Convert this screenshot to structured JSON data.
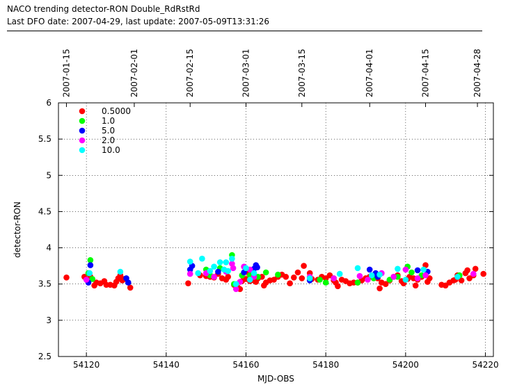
{
  "header": {
    "title": "NACO trending detector-RON Double_RdRstRd",
    "subtitle": "Last DFO date: 2007-04-29, last update: 2007-05-09T13:31:26"
  },
  "chart_data": {
    "type": "scatter",
    "xlabel": "MJD-OBS",
    "ylabel": "detector-RON",
    "xlim": [
      54113,
      54222
    ],
    "ylim": [
      2.5,
      6
    ],
    "x_ticks": [
      54120,
      54140,
      54160,
      54180,
      54200,
      54220
    ],
    "y_ticks": [
      2.5,
      3,
      3.5,
      4,
      4.5,
      5,
      5.5,
      6
    ],
    "y_tick_labels": [
      "2.5",
      "3",
      "3.5",
      "4",
      "4.5",
      "5",
      "5.5",
      "6"
    ],
    "top_axis": {
      "ticks": [
        {
          "x": 54115,
          "label": "2007-01-15"
        },
        {
          "x": 54132,
          "label": "2007-02-01"
        },
        {
          "x": 54146,
          "label": "2007-02-15"
        },
        {
          "x": 54160,
          "label": "2007-03-01"
        },
        {
          "x": 54174,
          "label": "2007-03-15"
        },
        {
          "x": 54191,
          "label": "2007-04-01"
        },
        {
          "x": 54205,
          "label": "2007-04-15"
        },
        {
          "x": 54218,
          "label": "2007-04-28"
        }
      ]
    },
    "grid": true,
    "legend_position": "top-left",
    "series": [
      {
        "name": "0.5000",
        "color": "#ff0000",
        "points": [
          [
            54115,
            3.59
          ],
          [
            54119.5,
            3.6
          ],
          [
            54121,
            3.6
          ],
          [
            54122,
            3.48
          ],
          [
            54122.5,
            3.52
          ],
          [
            54123.5,
            3.51
          ],
          [
            54124.5,
            3.54
          ],
          [
            54125,
            3.49
          ],
          [
            54126,
            3.49
          ],
          [
            54127,
            3.48
          ],
          [
            54127.5,
            3.53
          ],
          [
            54128,
            3.58
          ],
          [
            54128.5,
            3.62
          ],
          [
            54129,
            3.55
          ],
          [
            54129.5,
            3.57
          ],
          [
            54131,
            3.45
          ],
          [
            54145.5,
            3.51
          ],
          [
            54148.5,
            3.62
          ],
          [
            54150,
            3.61
          ],
          [
            54151,
            3.6
          ],
          [
            54152,
            3.59
          ],
          [
            54153,
            3.64
          ],
          [
            54154,
            3.58
          ],
          [
            54155,
            3.56
          ],
          [
            54155.5,
            3.6
          ],
          [
            54157,
            3.49
          ],
          [
            54158,
            3.45
          ],
          [
            54158.5,
            3.43
          ],
          [
            54159,
            3.54
          ],
          [
            54160,
            3.57
          ],
          [
            54160.5,
            3.66
          ],
          [
            54161,
            3.54
          ],
          [
            54162,
            3.55
          ],
          [
            54162.5,
            3.53
          ],
          [
            54163,
            3.58
          ],
          [
            54164,
            3.6
          ],
          [
            54164.5,
            3.48
          ],
          [
            54165,
            3.52
          ],
          [
            54166,
            3.55
          ],
          [
            54167,
            3.56
          ],
          [
            54168,
            3.6
          ],
          [
            54169,
            3.63
          ],
          [
            54170,
            3.6
          ],
          [
            54171,
            3.51
          ],
          [
            54172,
            3.59
          ],
          [
            54173,
            3.66
          ],
          [
            54174,
            3.58
          ],
          [
            54174.5,
            3.75
          ],
          [
            54176,
            3.65
          ],
          [
            54176.5,
            3.57
          ],
          [
            54178,
            3.56
          ],
          [
            54179,
            3.6
          ],
          [
            54180,
            3.58
          ],
          [
            54181,
            3.62
          ],
          [
            54182,
            3.55
          ],
          [
            54182.5,
            3.52
          ],
          [
            54183,
            3.47
          ],
          [
            54184,
            3.56
          ],
          [
            54185,
            3.54
          ],
          [
            54186,
            3.51
          ],
          [
            54187,
            3.52
          ],
          [
            54188,
            3.52
          ],
          [
            54189,
            3.55
          ],
          [
            54190,
            3.58
          ],
          [
            54191,
            3.6
          ],
          [
            54192,
            3.62
          ],
          [
            54193,
            3.58
          ],
          [
            54193.5,
            3.44
          ],
          [
            54194,
            3.52
          ],
          [
            54195,
            3.5
          ],
          [
            54196,
            3.55
          ],
          [
            54197,
            3.6
          ],
          [
            54198,
            3.62
          ],
          [
            54199,
            3.54
          ],
          [
            54199.5,
            3.51
          ],
          [
            54200.5,
            3.57
          ],
          [
            54201,
            3.6
          ],
          [
            54202,
            3.58
          ],
          [
            54202.5,
            3.48
          ],
          [
            54203,
            3.56
          ],
          [
            54204,
            3.6
          ],
          [
            54205,
            3.76
          ],
          [
            54205.5,
            3.53
          ],
          [
            54206,
            3.58
          ],
          [
            54209,
            3.49
          ],
          [
            54210,
            3.48
          ],
          [
            54211,
            3.52
          ],
          [
            54212,
            3.55
          ],
          [
            54212.5,
            3.56
          ],
          [
            54213,
            3.62
          ],
          [
            54214,
            3.55
          ],
          [
            54215,
            3.65
          ],
          [
            54215.5,
            3.69
          ],
          [
            54216,
            3.58
          ],
          [
            54217,
            3.62
          ],
          [
            54217.5,
            3.71
          ],
          [
            54219.5,
            3.64
          ]
        ]
      },
      {
        "name": "1.0",
        "color": "#00ff00",
        "points": [
          [
            54120.5,
            3.65
          ],
          [
            54121,
            3.83
          ],
          [
            54121.5,
            3.57
          ],
          [
            54150,
            3.7
          ],
          [
            54151,
            3.62
          ],
          [
            54153.5,
            3.72
          ],
          [
            54156.5,
            3.9
          ],
          [
            54157,
            3.5
          ],
          [
            54159,
            3.62
          ],
          [
            54161,
            3.62
          ],
          [
            54163,
            3.6
          ],
          [
            54165,
            3.66
          ],
          [
            54168,
            3.63
          ],
          [
            54178.5,
            3.56
          ],
          [
            54180,
            3.52
          ],
          [
            54182,
            3.58
          ],
          [
            54188,
            3.52
          ],
          [
            54192,
            3.58
          ],
          [
            54196,
            3.56
          ],
          [
            54198,
            3.6
          ],
          [
            54200.5,
            3.74
          ],
          [
            54201.5,
            3.66
          ],
          [
            54204,
            3.62
          ],
          [
            54213.5,
            3.62
          ]
        ]
      },
      {
        "name": "5.0",
        "color": "#0000ff",
        "points": [
          [
            54120.5,
            3.52
          ],
          [
            54121,
            3.76
          ],
          [
            54130,
            3.58
          ],
          [
            54130.5,
            3.52
          ],
          [
            54146,
            3.7
          ],
          [
            54146.5,
            3.75
          ],
          [
            54153,
            3.67
          ],
          [
            54159.5,
            3.66
          ],
          [
            54162,
            3.71
          ],
          [
            54162.5,
            3.76
          ],
          [
            54162.8,
            3.73
          ],
          [
            54176,
            3.55
          ],
          [
            54191,
            3.7
          ],
          [
            54192.5,
            3.65
          ],
          [
            54193,
            3.6
          ],
          [
            54203,
            3.69
          ],
          [
            54205.5,
            3.67
          ]
        ]
      },
      {
        "name": "2.0",
        "color": "#ff00ff",
        "points": [
          [
            54120,
            3.56
          ],
          [
            54146,
            3.64
          ],
          [
            54150,
            3.65
          ],
          [
            54152,
            3.6
          ],
          [
            54155,
            3.67
          ],
          [
            54156.5,
            3.78
          ],
          [
            54156.8,
            3.72
          ],
          [
            54157.5,
            3.43
          ],
          [
            54158.5,
            3.53
          ],
          [
            54159.5,
            3.74
          ],
          [
            54161,
            3.7
          ],
          [
            54162,
            3.6
          ],
          [
            54176,
            3.6
          ],
          [
            54182,
            3.58
          ],
          [
            54188.5,
            3.61
          ],
          [
            54190.5,
            3.56
          ],
          [
            54194,
            3.65
          ],
          [
            54197,
            3.6
          ],
          [
            54200,
            3.7
          ],
          [
            54203,
            3.58
          ],
          [
            54205,
            3.62
          ],
          [
            54217,
            3.64
          ]
        ]
      },
      {
        "name": "10.0",
        "color": "#00ffff",
        "points": [
          [
            54120.8,
            3.65
          ],
          [
            54128.5,
            3.67
          ],
          [
            54146,
            3.81
          ],
          [
            54148,
            3.65
          ],
          [
            54149,
            3.85
          ],
          [
            54151,
            3.68
          ],
          [
            54152,
            3.74
          ],
          [
            54153.5,
            3.8
          ],
          [
            54154.5,
            3.7
          ],
          [
            54155,
            3.8
          ],
          [
            54155.5,
            3.68
          ],
          [
            54156.5,
            3.85
          ],
          [
            54157.5,
            3.5
          ],
          [
            54160,
            3.72
          ],
          [
            54161,
            3.56
          ],
          [
            54162,
            3.65
          ],
          [
            54176,
            3.58
          ],
          [
            54183.5,
            3.64
          ],
          [
            54188,
            3.72
          ],
          [
            54191.5,
            3.62
          ],
          [
            54193.5,
            3.63
          ],
          [
            54198,
            3.71
          ],
          [
            54200,
            3.56
          ],
          [
            54204.5,
            3.7
          ],
          [
            54213,
            3.6
          ]
        ]
      }
    ]
  }
}
